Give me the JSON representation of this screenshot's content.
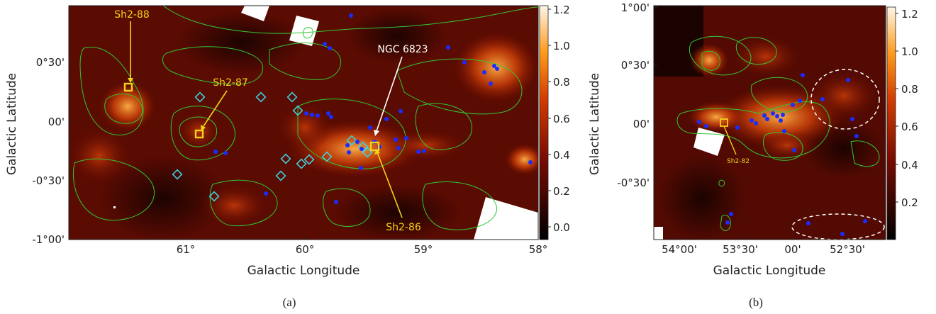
{
  "panel_a": {
    "caption": "(a)",
    "xlabel": "Galactic Longitude",
    "ylabel": "Galactic Latitude",
    "x_ticks": [
      "61°",
      "60°",
      "59°",
      "58°"
    ],
    "y_ticks": [
      "0°30'",
      "00'",
      "-0°30'",
      "-1°00'"
    ],
    "colorbar_ticks": [
      "1.2",
      "1.0",
      "0.8",
      "0.6",
      "0.4",
      "0.2",
      "0.0"
    ],
    "annotations": {
      "sh2_88": "Sh2-88",
      "sh2_87": "Sh2-87",
      "ngc_6823": "NGC 6823",
      "sh2_86": "Sh2-86"
    },
    "colors": {
      "label": "#f2d21a",
      "ngc_label": "#ffffff",
      "contour": "#32c832",
      "cyan_marker": "#3fd0e0",
      "blue_marker": "#1a2cff"
    }
  },
  "panel_b": {
    "caption": "(b)",
    "xlabel": "Galactic Longitude",
    "ylabel": "Galactic Latitude",
    "x_ticks": [
      "54°00'",
      "53°30'",
      "00'",
      "52°30'"
    ],
    "y_ticks": [
      "1°00'",
      "0°30'",
      "00'",
      "-0°30'"
    ],
    "colorbar_ticks": [
      "1.2",
      "1.0",
      "0.8",
      "0.6",
      "0.4",
      "0.2"
    ],
    "annotations": {
      "sh2_82": "Sh2-82"
    },
    "colors": {
      "label": "#f2d21a",
      "ellipse": "#ffffff",
      "contour": "#32c832",
      "blue_marker": "#1a2cff"
    }
  }
}
